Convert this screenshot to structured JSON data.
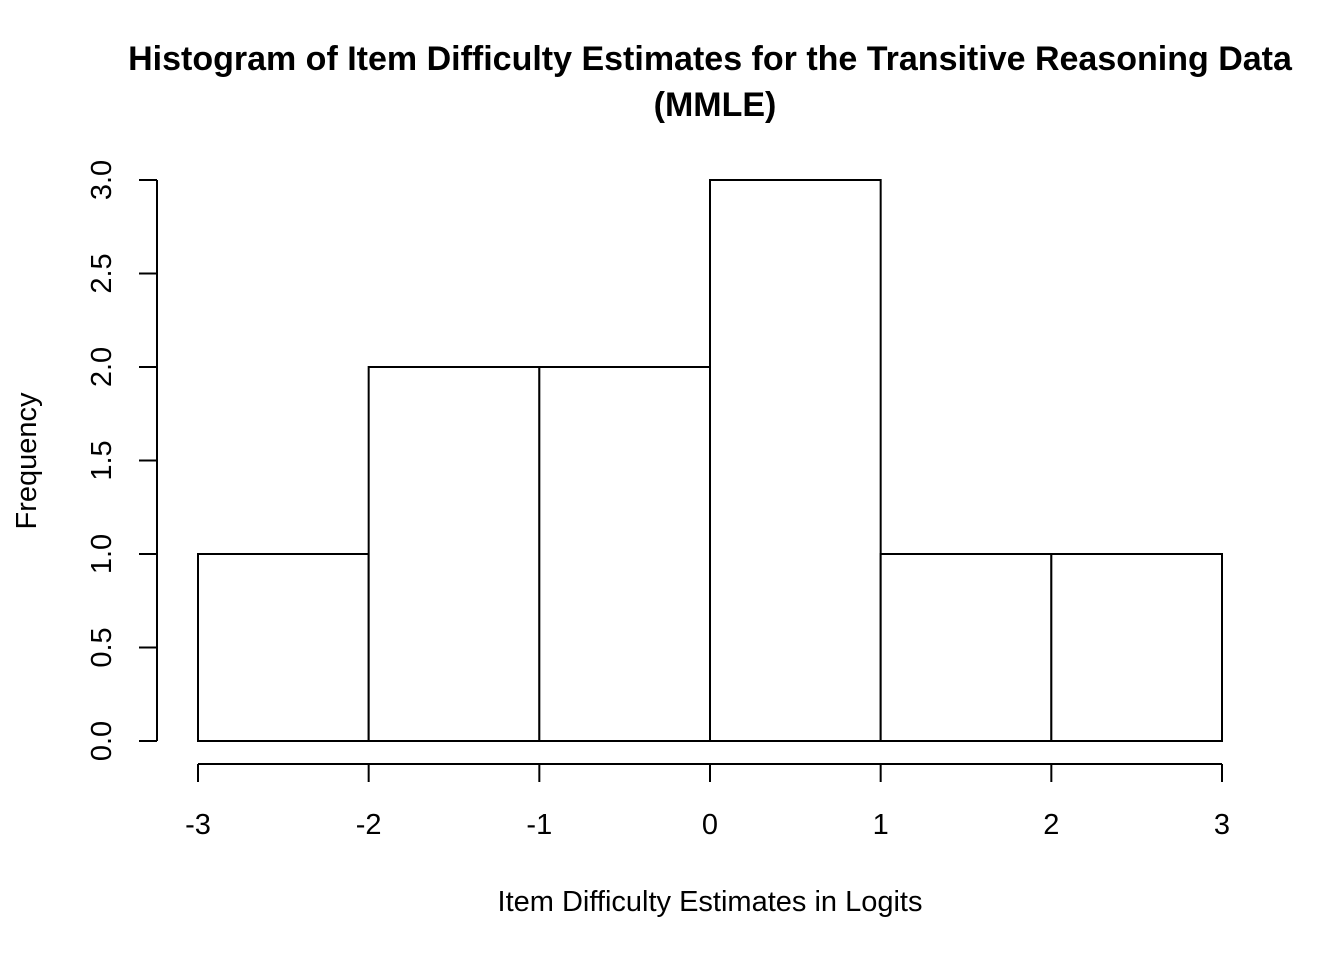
{
  "chart_data": {
    "type": "bar",
    "title_line1": "Histogram of Item Difficulty Estimates for the Transitive Reasoning Data",
    "title_line2": "(MMLE)",
    "xlabel": "Item Difficulty Estimates in Logits",
    "ylabel": "Frequency",
    "bins": [
      {
        "from": -3,
        "to": -2,
        "count": 1
      },
      {
        "from": -2,
        "to": -1,
        "count": 2
      },
      {
        "from": -1,
        "to": 0,
        "count": 2
      },
      {
        "from": 0,
        "to": 1,
        "count": 3
      },
      {
        "from": 1,
        "to": 2,
        "count": 1
      },
      {
        "from": 2,
        "to": 3,
        "count": 1
      }
    ],
    "xlim": [
      -3,
      3
    ],
    "ylim": [
      0,
      3
    ],
    "xticks": [
      "-3",
      "-2",
      "-1",
      "0",
      "1",
      "2",
      "3"
    ],
    "yticks": [
      "0.0",
      "0.5",
      "1.0",
      "1.5",
      "2.0",
      "2.5",
      "3.0"
    ],
    "grid": false,
    "bar_fill": "#ffffff",
    "bar_stroke": "#000000"
  }
}
